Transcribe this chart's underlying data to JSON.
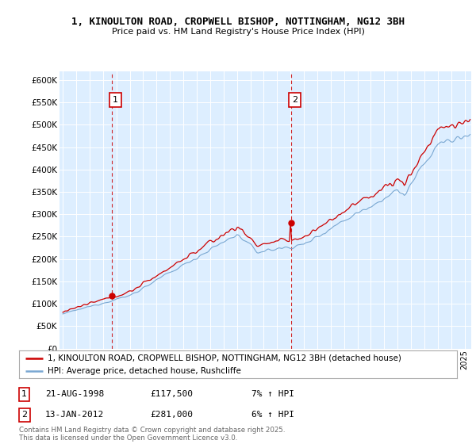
{
  "title": "1, KINOULTON ROAD, CROPWELL BISHOP, NOTTINGHAM, NG12 3BH",
  "subtitle": "Price paid vs. HM Land Registry's House Price Index (HPI)",
  "ylim": [
    0,
    620000
  ],
  "xlim_start": 1994.75,
  "xlim_end": 2025.5,
  "sale1_date": 1998.64,
  "sale1_price": 117500,
  "sale1_label": "1",
  "sale2_date": 2012.04,
  "sale2_price": 281000,
  "sale2_label": "2",
  "legend_line1": "1, KINOULTON ROAD, CROPWELL BISHOP, NOTTINGHAM, NG12 3BH (detached house)",
  "legend_line2": "HPI: Average price, detached house, Rushcliffe",
  "footer": "Contains HM Land Registry data © Crown copyright and database right 2025.\nThis data is licensed under the Open Government Licence v3.0.",
  "red_color": "#cc0000",
  "blue_color": "#7aa8d2",
  "bg_color": "#ddeeff",
  "grid_color": "#ffffff",
  "vline_color": "#cc0000"
}
